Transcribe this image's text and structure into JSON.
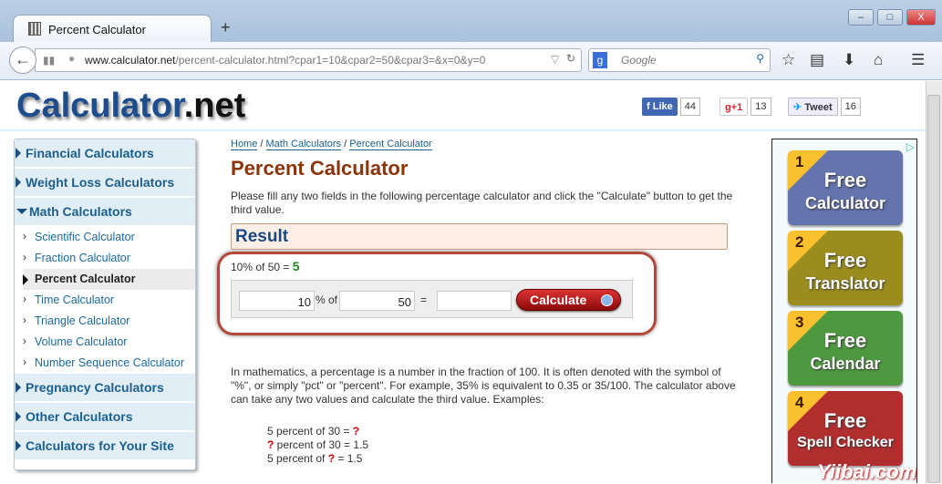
{
  "browser": {
    "tab_title": "Percent Calculator",
    "new_tab": "+",
    "url_domain": "www.calculator.net",
    "url_path": "/percent-calculator.html?cpar1=10&cpar2=50&cpar3=&x=0&y=0",
    "search_placeholder": "Google"
  },
  "header": {
    "logo_main": "Calculator",
    "logo_ext": ".net",
    "social": [
      {
        "label": "Like",
        "count": "44"
      },
      {
        "label": "g+1",
        "count": "13"
      },
      {
        "label": "Tweet",
        "count": "16"
      }
    ]
  },
  "sidebar": {
    "categories_top": [
      "Financial Calculators",
      "Weight Loss Calculators"
    ],
    "math": "Math Calculators",
    "math_items": [
      "Scientific Calculator",
      "Fraction Calculator",
      "Percent Calculator",
      "Time Calculator",
      "Triangle Calculator",
      "Volume Calculator",
      "Number Sequence Calculator"
    ],
    "active_item": "Percent Calculator",
    "categories_bottom": [
      "Pregnancy Calculators",
      "Other Calculators",
      "Calculators for Your Site"
    ]
  },
  "breadcrumb": [
    "Home",
    "Math Calculators",
    "Percent Calculator"
  ],
  "main": {
    "title": "Percent Calculator",
    "intro": "Please fill any two fields in the following percentage calculator and click the \"Calculate\" button to get the third value.",
    "result_heading": "Result",
    "result_expr": "10% of 50 = ",
    "result_value": "5",
    "input1": "10",
    "label_pct": "% of",
    "input2": "50",
    "label_eq": "=",
    "input3": "",
    "calculate": "Calculate",
    "description": "In mathematics, a percentage is a number in the fraction of 100. It is often denoted with the symbol of \"%\", or simply \"pct\" or \"percent\". For example, 35% is equivalent to 0.35 or 35/100. The calculator above can take any two values and calculate the third value. Examples:",
    "examples": [
      [
        "5 percent of 30 = ",
        "?",
        ""
      ],
      [
        "",
        "?",
        " percent of 30 = 1.5"
      ],
      [
        "5 percent of ",
        "?",
        " = 1.5"
      ]
    ]
  },
  "ads": [
    {
      "num": "1",
      "free": "Free",
      "name": "Calculator",
      "color": "#6474ad"
    },
    {
      "num": "2",
      "free": "Free",
      "name": "Translator",
      "color": "#9a8c1e"
    },
    {
      "num": "3",
      "free": "Free",
      "name": "Calendar",
      "color": "#4e9940"
    },
    {
      "num": "4",
      "free": "Free",
      "name": "Spell Checker",
      "color": "#b02e2e"
    }
  ],
  "watermark": "Yiibai.com"
}
